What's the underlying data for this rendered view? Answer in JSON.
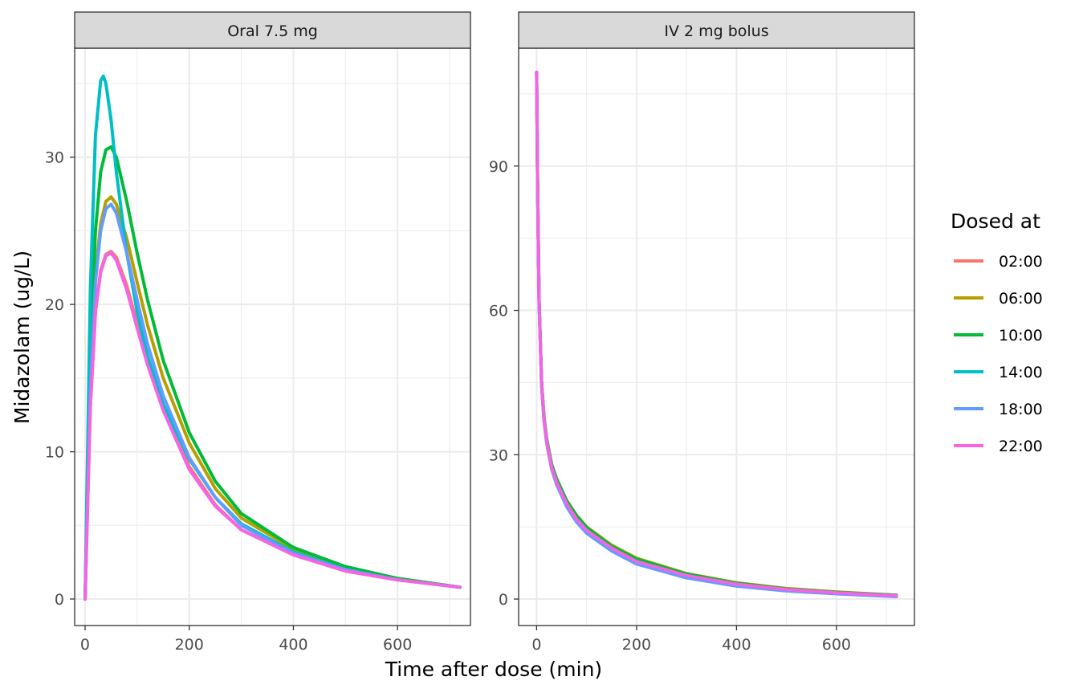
{
  "chart_data": {
    "type": "line",
    "xlabel": "Time after dose (min)",
    "ylabel": "Midazolam (ug/L)",
    "legend": {
      "title": "Dosed at",
      "placement": "right",
      "entries": [
        {
          "label": "02:00",
          "color": "#F8766D"
        },
        {
          "label": "06:00",
          "color": "#B79F00"
        },
        {
          "label": "10:00",
          "color": "#00BA38"
        },
        {
          "label": "14:00",
          "color": "#00BFC4"
        },
        {
          "label": "18:00",
          "color": "#619CFF"
        },
        {
          "label": "22:00",
          "color": "#F564E3"
        }
      ]
    },
    "grid": true,
    "panels": [
      {
        "title": "Oral 7.5 mg",
        "xlim": [
          -20,
          740
        ],
        "ylim": [
          -1.8,
          37.4
        ],
        "xticks": [
          0,
          200,
          400,
          600
        ],
        "yticks": [
          0,
          10,
          20,
          30
        ],
        "series": [
          {
            "name": "02:00",
            "x": [
              0,
              10,
              20,
              30,
              40,
              50,
              60,
              80,
              100,
              120,
              150,
              200,
              250,
              300,
              400,
              500,
              600,
              720
            ],
            "y": [
              0,
              13.0,
              19.5,
              22.3,
              23.4,
              23.6,
              23.2,
              21.3,
              18.7,
              16.2,
              13.0,
              9.0,
              6.4,
              4.7,
              3.0,
              1.9,
              1.3,
              0.8
            ]
          },
          {
            "name": "06:00",
            "x": [
              0,
              10,
              20,
              30,
              40,
              50,
              60,
              80,
              100,
              120,
              150,
              200,
              250,
              300,
              400,
              500,
              600,
              720
            ],
            "y": [
              0,
              14.5,
              22.0,
              25.5,
              27.0,
              27.3,
              26.8,
              24.5,
              21.5,
              18.6,
              15.0,
              10.6,
              7.5,
              5.5,
              3.4,
              2.1,
              1.4,
              0.8
            ]
          },
          {
            "name": "10:00",
            "x": [
              0,
              10,
              20,
              30,
              40,
              50,
              60,
              80,
              100,
              120,
              150,
              200,
              250,
              300,
              400,
              500,
              600,
              720
            ],
            "y": [
              0,
              16.5,
              25.0,
              29.0,
              30.5,
              30.7,
              30.0,
              27.0,
              23.5,
              20.3,
              16.2,
              11.3,
              8.0,
              5.8,
              3.5,
              2.2,
              1.4,
              0.8
            ]
          },
          {
            "name": "14:00",
            "x": [
              0,
              10,
              20,
              30,
              35,
              40,
              50,
              60,
              80,
              100,
              120,
              150,
              200,
              250,
              300,
              400,
              500,
              600,
              720
            ],
            "y": [
              0,
              21.0,
              31.5,
              35.2,
              35.5,
              35.0,
              32.5,
              29.0,
              23.5,
              19.5,
              16.5,
              13.2,
              9.5,
              6.9,
              5.1,
              3.2,
              2.0,
              1.3,
              0.8
            ]
          },
          {
            "name": "18:00",
            "x": [
              0,
              10,
              20,
              30,
              40,
              50,
              60,
              80,
              100,
              120,
              150,
              200,
              250,
              300,
              400,
              500,
              600,
              720
            ],
            "y": [
              0,
              14.0,
              21.5,
              25.0,
              26.5,
              26.8,
              26.2,
              23.5,
              20.3,
              17.3,
              13.8,
              9.6,
              6.9,
              5.0,
              3.1,
              2.0,
              1.3,
              0.8
            ]
          },
          {
            "name": "22:00",
            "x": [
              0,
              10,
              20,
              30,
              40,
              50,
              60,
              80,
              100,
              120,
              150,
              200,
              250,
              300,
              400,
              500,
              600,
              720
            ],
            "y": [
              0,
              13.0,
              19.5,
              22.2,
              23.3,
              23.5,
              23.0,
              21.0,
              18.4,
              15.9,
              12.8,
              8.8,
              6.3,
              4.7,
              3.0,
              1.9,
              1.3,
              0.8
            ]
          }
        ]
      },
      {
        "title": "IV 2 mg bolus",
        "xlim": [
          -36,
          756
        ],
        "ylim": [
          -5.5,
          114.5
        ],
        "xticks": [
          0,
          200,
          400,
          600
        ],
        "yticks": [
          0,
          30,
          60,
          90
        ],
        "series": [
          {
            "name": "02:00",
            "x": [
              0,
              2,
              5,
              10,
              15,
              20,
              30,
              40,
              60,
              80,
              100,
              150,
              200,
              300,
              400,
              500,
              600,
              720
            ],
            "y": [
              109.5,
              85.0,
              62.0,
              45.0,
              37.5,
              33.0,
              27.5,
              24.5,
              20.0,
              16.8,
              14.5,
              10.8,
              8.0,
              5.0,
              3.2,
              2.1,
              1.4,
              0.8
            ]
          },
          {
            "name": "06:00",
            "x": [
              0,
              2,
              5,
              10,
              15,
              20,
              30,
              40,
              60,
              80,
              100,
              150,
              200,
              300,
              400,
              500,
              600,
              720
            ],
            "y": [
              109.5,
              85.0,
              62.0,
              45.0,
              37.8,
              33.3,
              28.0,
              25.0,
              20.5,
              17.4,
              15.0,
              11.2,
              8.5,
              5.3,
              3.4,
              2.2,
              1.5,
              0.8
            ]
          },
          {
            "name": "10:00",
            "x": [
              0,
              2,
              5,
              10,
              15,
              20,
              30,
              40,
              60,
              80,
              100,
              150,
              200,
              300,
              400,
              500,
              600,
              720
            ],
            "y": [
              109.5,
              85.0,
              62.0,
              45.0,
              37.8,
              33.3,
              28.0,
              25.0,
              20.4,
              17.3,
              14.9,
              11.0,
              8.3,
              5.2,
              3.3,
              2.1,
              1.4,
              0.8
            ]
          },
          {
            "name": "14:00",
            "x": [
              0,
              2,
              5,
              10,
              15,
              20,
              30,
              40,
              60,
              80,
              100,
              150,
              200,
              300,
              400,
              500,
              600,
              720
            ],
            "y": [
              109.5,
              84.5,
              61.5,
              44.5,
              37.0,
              32.5,
              27.2,
              24.0,
              19.5,
              16.3,
              14.0,
              10.3,
              7.6,
              4.7,
              2.9,
              1.8,
              1.2,
              0.6
            ]
          },
          {
            "name": "18:00",
            "x": [
              0,
              2,
              5,
              10,
              15,
              20,
              30,
              40,
              60,
              80,
              100,
              150,
              200,
              300,
              400,
              500,
              600,
              720
            ],
            "y": [
              109.5,
              84.5,
              61.5,
              44.5,
              37.0,
              32.5,
              27.0,
              23.8,
              19.2,
              16.0,
              13.7,
              10.0,
              7.3,
              4.4,
              2.7,
              1.7,
              1.1,
              0.5
            ]
          },
          {
            "name": "22:00",
            "x": [
              0,
              2,
              5,
              10,
              15,
              20,
              30,
              40,
              60,
              80,
              100,
              150,
              200,
              300,
              400,
              500,
              600,
              720
            ],
            "y": [
              109.5,
              84.8,
              61.8,
              44.8,
              37.3,
              32.8,
              27.4,
              24.3,
              19.8,
              16.6,
              14.3,
              10.6,
              7.8,
              4.9,
              3.1,
              2.0,
              1.3,
              0.7
            ]
          }
        ]
      }
    ]
  }
}
